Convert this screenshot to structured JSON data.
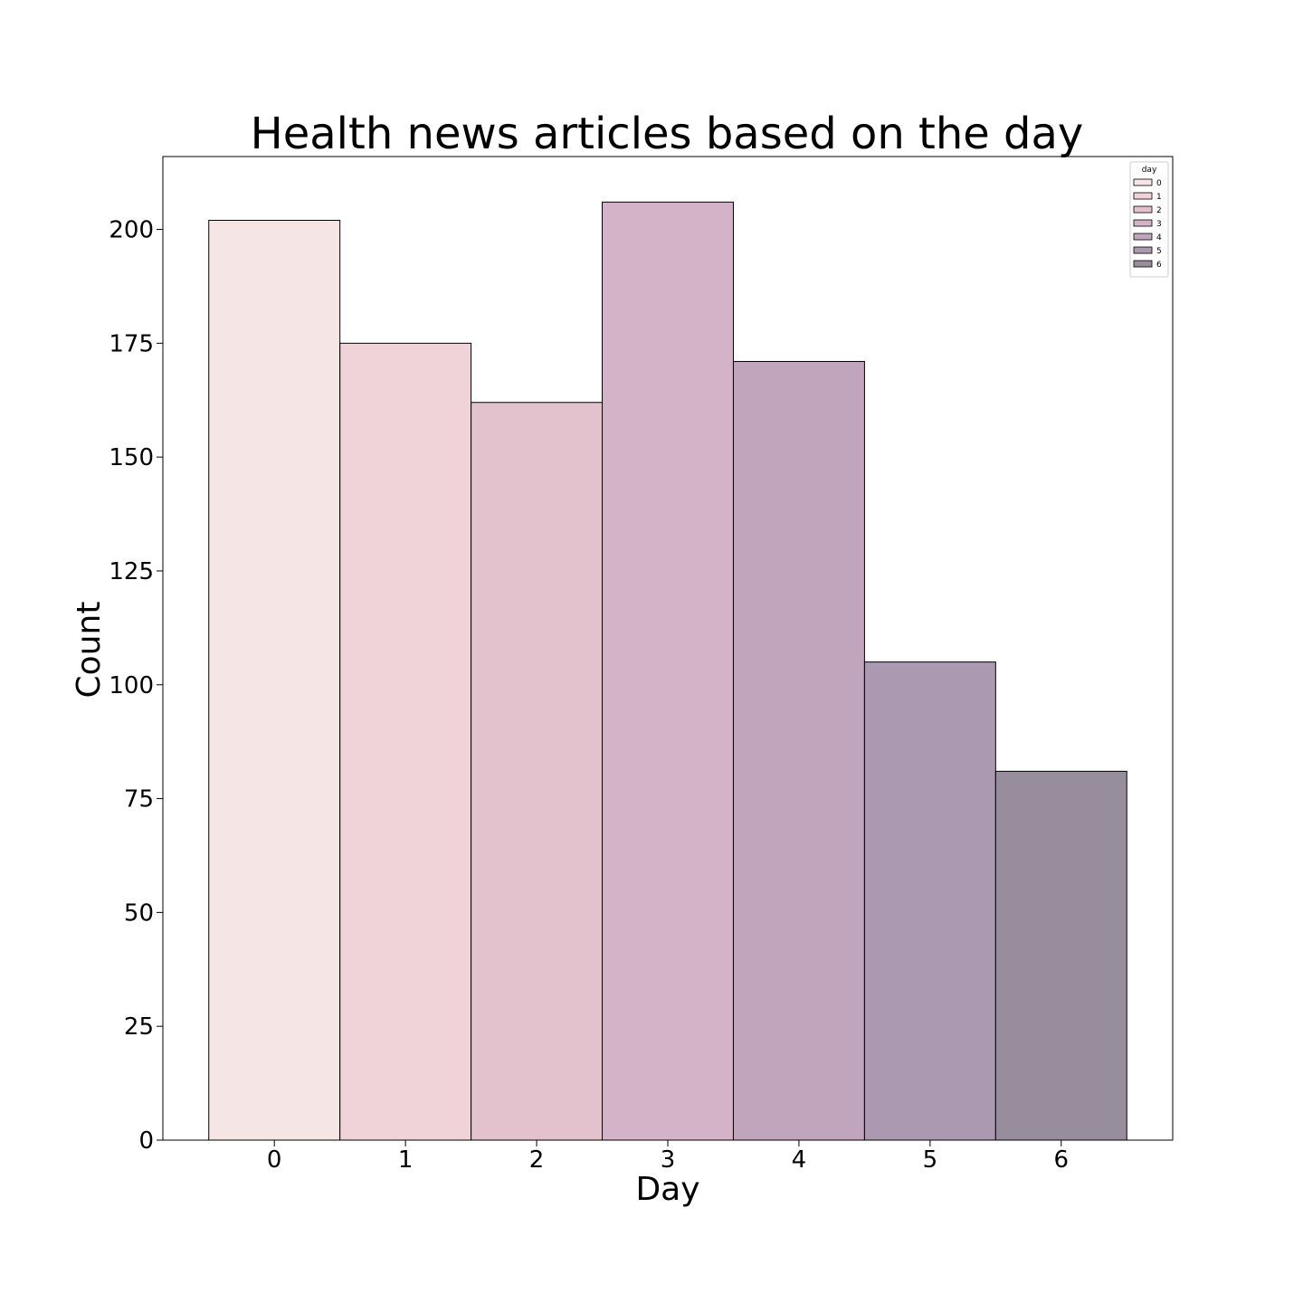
{
  "chart_data": {
    "type": "bar",
    "title": "Health news articles based on the day",
    "xlabel": "Day",
    "ylabel": "Count",
    "categories": [
      "0",
      "1",
      "2",
      "3",
      "4",
      "5",
      "6"
    ],
    "values": [
      202,
      175,
      162,
      206,
      171,
      105,
      81
    ],
    "ylim": [
      0,
      216
    ],
    "yticks": [
      0,
      25,
      50,
      75,
      100,
      125,
      150,
      175,
      200
    ],
    "grid": false,
    "legend": {
      "title": "day",
      "placement": "top-right",
      "entries": [
        "0",
        "1",
        "2",
        "3",
        "4",
        "5",
        "6"
      ]
    },
    "colors": [
      "#f5e6e5",
      "#f0d3d8",
      "#e3c2ce",
      "#d4b2c7",
      "#c1a5bd",
      "#ab99b1",
      "#978d9d"
    ]
  }
}
